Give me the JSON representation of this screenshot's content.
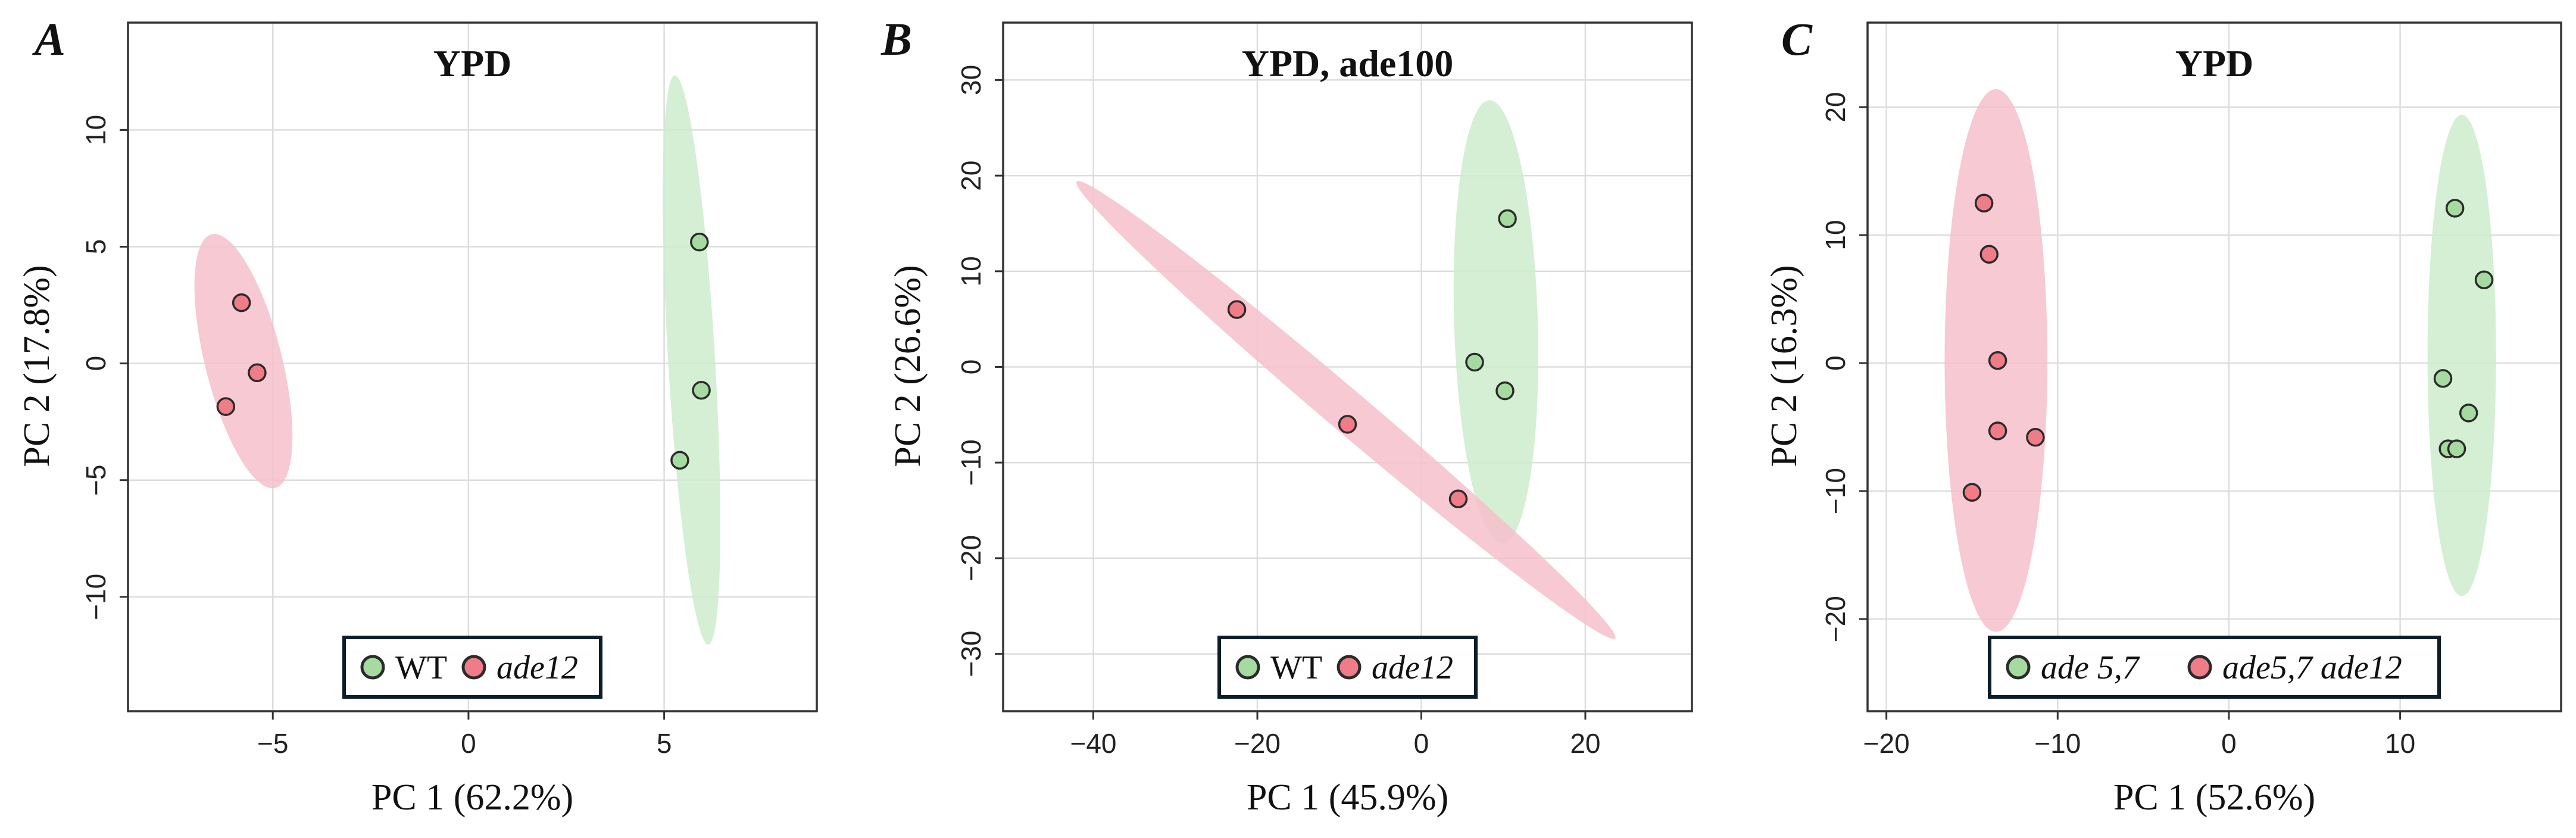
{
  "colors": {
    "group_a_fill": "#a5dba0",
    "group_a_ellipse": "#cdeccb",
    "group_b_fill": "#ef7c86",
    "group_b_ellipse": "#f6c0cb",
    "point_stroke": "#2b2b2b",
    "grid": "#dddddd",
    "axis": "#333333",
    "legend_border": "#0b1c2a"
  },
  "chart_data": [
    {
      "panel": "A",
      "type": "scatter",
      "title": "YPD",
      "xlabel": "PC 1 (62.2%)",
      "ylabel": "PC 2 (17.8%)",
      "xlim": [
        -8.7,
        8.9
      ],
      "ylim": [
        -14.9,
        14.6
      ],
      "xticks": [
        -5,
        0,
        5
      ],
      "xtick_labels": [
        "−5",
        "0",
        "5"
      ],
      "yticks": [
        -10,
        -5,
        0,
        5,
        10
      ],
      "ytick_labels": [
        "−10",
        "−5",
        "0",
        "5",
        "10"
      ],
      "grid": true,
      "legend_position": "bottom-center",
      "series": [
        {
          "name": "WT",
          "italic": false,
          "color_key": "a",
          "points": [
            [
              5.9,
              5.2
            ],
            [
              5.95,
              -1.15
            ],
            [
              5.4,
              -4.15
            ]
          ],
          "ellipse": {
            "cx": 5.7,
            "cy": 0.15,
            "rx": 0.6,
            "ry": 12.2,
            "angle_deg": 2
          }
        },
        {
          "name": "ade12",
          "italic": true,
          "color_key": "b",
          "points": [
            [
              -5.8,
              2.6
            ],
            [
              -5.4,
              -0.4
            ],
            [
              -6.2,
              -1.85
            ]
          ],
          "ellipse": {
            "cx": -5.75,
            "cy": 0.1,
            "rx": 1.0,
            "ry": 5.5,
            "angle_deg": 8
          }
        }
      ]
    },
    {
      "panel": "B",
      "type": "scatter",
      "title": "YPD, ade100",
      "xlabel": "PC 1 (45.9%)",
      "ylabel": "PC 2 (26.6%)",
      "xlim": [
        -51,
        33
      ],
      "ylim": [
        -36,
        36
      ],
      "xticks": [
        -40,
        -20,
        0,
        20
      ],
      "xtick_labels": [
        "−40",
        "−20",
        "0",
        "20"
      ],
      "yticks": [
        -30,
        -20,
        -10,
        0,
        10,
        20,
        30
      ],
      "ytick_labels": [
        "−30",
        "−20",
        "−10",
        "0",
        "10",
        "20",
        "30"
      ],
      "grid": true,
      "legend_position": "bottom-center",
      "series": [
        {
          "name": "WT",
          "italic": false,
          "color_key": "a",
          "points": [
            [
              10.5,
              15.5
            ],
            [
              6.5,
              0.5
            ],
            [
              10.2,
              -2.5
            ]
          ],
          "ellipse": {
            "cx": 9.1,
            "cy": 4.7,
            "rx": 5.1,
            "ry": 23.2,
            "angle_deg": 2
          }
        },
        {
          "name": "ade12",
          "italic": true,
          "color_key": "b",
          "points": [
            [
              -22.5,
              6.0
            ],
            [
              -9.0,
              -6.0
            ],
            [
              4.5,
              -13.8
            ]
          ],
          "ellipse": {
            "cx": -9.2,
            "cy": -4.5,
            "rx": 2.3,
            "ry": 40.6,
            "angle_deg": 54
          }
        }
      ]
    },
    {
      "panel": "C",
      "type": "scatter",
      "title": "YPD",
      "xlabel": "PC 1 (52.6%)",
      "ylabel": "PC 2 (16.3%)",
      "xlim": [
        -21.1,
        19.4
      ],
      "ylim": [
        -27.2,
        26.6
      ],
      "xticks": [
        -20,
        -10,
        0,
        10
      ],
      "xtick_labels": [
        "−20",
        "−10",
        "0",
        "10"
      ],
      "yticks": [
        -20,
        -10,
        0,
        10,
        20
      ],
      "ytick_labels": [
        "−20",
        "−10",
        "0",
        "10",
        "20"
      ],
      "grid": true,
      "legend_position": "bottom-center",
      "series": [
        {
          "name": "ade 5,7",
          "italic": true,
          "color_key": "a",
          "points": [
            [
              13.2,
              12.1
            ],
            [
              14.9,
              6.5
            ],
            [
              12.5,
              -1.2
            ],
            [
              14.0,
              -3.9
            ],
            [
              12.8,
              -6.7
            ],
            [
              13.3,
              -6.7
            ]
          ],
          "ellipse": {
            "cx": 13.6,
            "cy": 0.6,
            "rx": 2.0,
            "ry": 18.8,
            "angle_deg": 0
          }
        },
        {
          "name": "ade5,7 ade12",
          "italic": true,
          "color_key": "b",
          "points": [
            [
              -14.3,
              12.5
            ],
            [
              -14.0,
              8.5
            ],
            [
              -13.5,
              0.2
            ],
            [
              -13.5,
              -5.3
            ],
            [
              -11.3,
              -5.8
            ],
            [
              -15.0,
              -10.1
            ]
          ],
          "ellipse": {
            "cx": -13.6,
            "cy": 0.2,
            "rx": 3.0,
            "ry": 21.2,
            "angle_deg": 0
          }
        }
      ]
    }
  ]
}
